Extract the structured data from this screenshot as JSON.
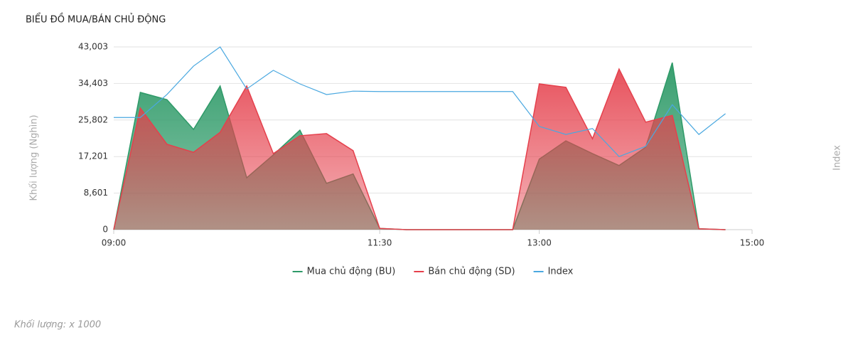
{
  "chart_data": {
    "type": "area",
    "title": "BIỂU ĐỒ MUA/BÁN CHỦ ĐỘNG",
    "y_label": "Khối lượng (Nghìn)",
    "y2_label": "Index",
    "x": [
      "09:00",
      "09:15",
      "09:30",
      "09:45",
      "10:00",
      "10:15",
      "10:30",
      "10:45",
      "11:00",
      "11:15",
      "11:30",
      "11:45",
      "12:00",
      "12:15",
      "12:30",
      "12:45",
      "13:00",
      "13:15",
      "13:30",
      "13:45",
      "14:00",
      "14:15",
      "14:30",
      "14:45"
    ],
    "xlim": [
      "09:00",
      "15:00"
    ],
    "xticks": [
      "09:00",
      "11:30",
      "13:00",
      "15:00"
    ],
    "ylim": [
      0,
      43003
    ],
    "yticks": [
      0,
      {
        "value": 8601,
        "label": "8,601"
      },
      {
        "value": 17201,
        "label": "17,201"
      },
      {
        "value": 25802,
        "label": "25,802"
      },
      {
        "value": 34403,
        "label": "34,403"
      },
      {
        "value": 43003,
        "label": "43,003"
      }
    ],
    "grid": true,
    "series": [
      {
        "name": "Mua chủ động (BU)",
        "color": "#2e9a68",
        "kind": "area",
        "values": [
          0,
          32300,
          30600,
          23600,
          33800,
          12200,
          17600,
          23400,
          10900,
          13100,
          300,
          0,
          0,
          0,
          0,
          0,
          16600,
          20900,
          17900,
          15100,
          19400,
          39300,
          200,
          0
        ]
      },
      {
        "name": "Bán chủ động (SD)",
        "color": "#e5404c",
        "kind": "area",
        "values": [
          0,
          28600,
          20100,
          18200,
          22900,
          33800,
          17900,
          22100,
          22600,
          18600,
          300,
          0,
          0,
          0,
          0,
          0,
          34300,
          33500,
          21400,
          37800,
          25300,
          26900,
          200,
          0
        ]
      },
      {
        "name": "Index",
        "color": "#4aa8e0",
        "kind": "line",
        "values": [
          26400,
          26400,
          31800,
          38500,
          43000,
          33100,
          37500,
          34300,
          31800,
          32600,
          32500,
          32500,
          32500,
          32500,
          32500,
          32500,
          24300,
          22400,
          23800,
          17200,
          19600,
          29400,
          22400,
          27300
        ]
      }
    ]
  },
  "note": "Khối lượng: x 1000"
}
